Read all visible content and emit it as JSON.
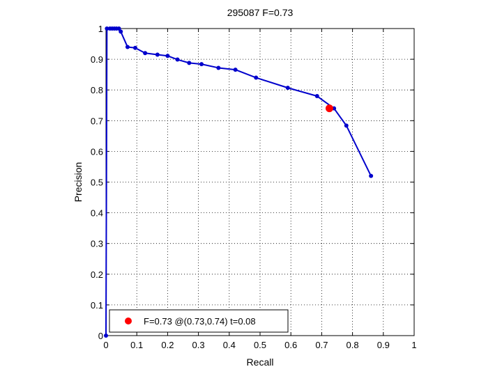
{
  "chart_data": {
    "type": "line",
    "title": "295087 F=0.73",
    "xlabel": "Recall",
    "ylabel": "Precision",
    "xlim": [
      0,
      1
    ],
    "ylim": [
      0,
      1
    ],
    "xticks": [
      0,
      0.1,
      0.2,
      0.3,
      0.4,
      0.5,
      0.6,
      0.7,
      0.8,
      0.9,
      1
    ],
    "yticks": [
      0,
      0.1,
      0.2,
      0.3,
      0.4,
      0.5,
      0.6,
      0.7,
      0.8,
      0.9,
      1
    ],
    "xtick_labels": [
      "0",
      "0.1",
      "0.2",
      "0.3",
      "0.4",
      "0.5",
      "0.6",
      "0.7",
      "0.8",
      "0.9",
      "1"
    ],
    "ytick_labels": [
      "0",
      "0.1",
      "0.2",
      "0.3",
      "0.4",
      "0.5",
      "0.6",
      "0.7",
      "0.8",
      "0.9",
      "1"
    ],
    "grid": true,
    "grid_style": "dotted",
    "series": [
      {
        "color": "#0000cc",
        "marker": "dot",
        "x": [
          0,
          0.003,
          0.013,
          0.02,
          0.027,
          0.034,
          0.042,
          0.048,
          0.07,
          0.095,
          0.127,
          0.167,
          0.2,
          0.232,
          0.27,
          0.31,
          0.365,
          0.42,
          0.487,
          0.59,
          0.685,
          0.74,
          0.78,
          0.86
        ],
        "y": [
          0,
          1,
          1,
          1,
          1,
          1,
          1,
          0.99,
          0.94,
          0.937,
          0.92,
          0.915,
          0.911,
          0.899,
          0.888,
          0.884,
          0.872,
          0.866,
          0.84,
          0.807,
          0.78,
          0.74,
          0.684,
          0.52
        ]
      }
    ],
    "highlight_point": {
      "x": 0.725,
      "y": 0.74,
      "color": "#ff0000"
    },
    "legend": {
      "location": "bottom-left",
      "entries": [
        {
          "label": "F=0.73 @(0.73,0.74) t=0.08",
          "color": "#ff0000",
          "marker": "dot"
        }
      ]
    }
  }
}
